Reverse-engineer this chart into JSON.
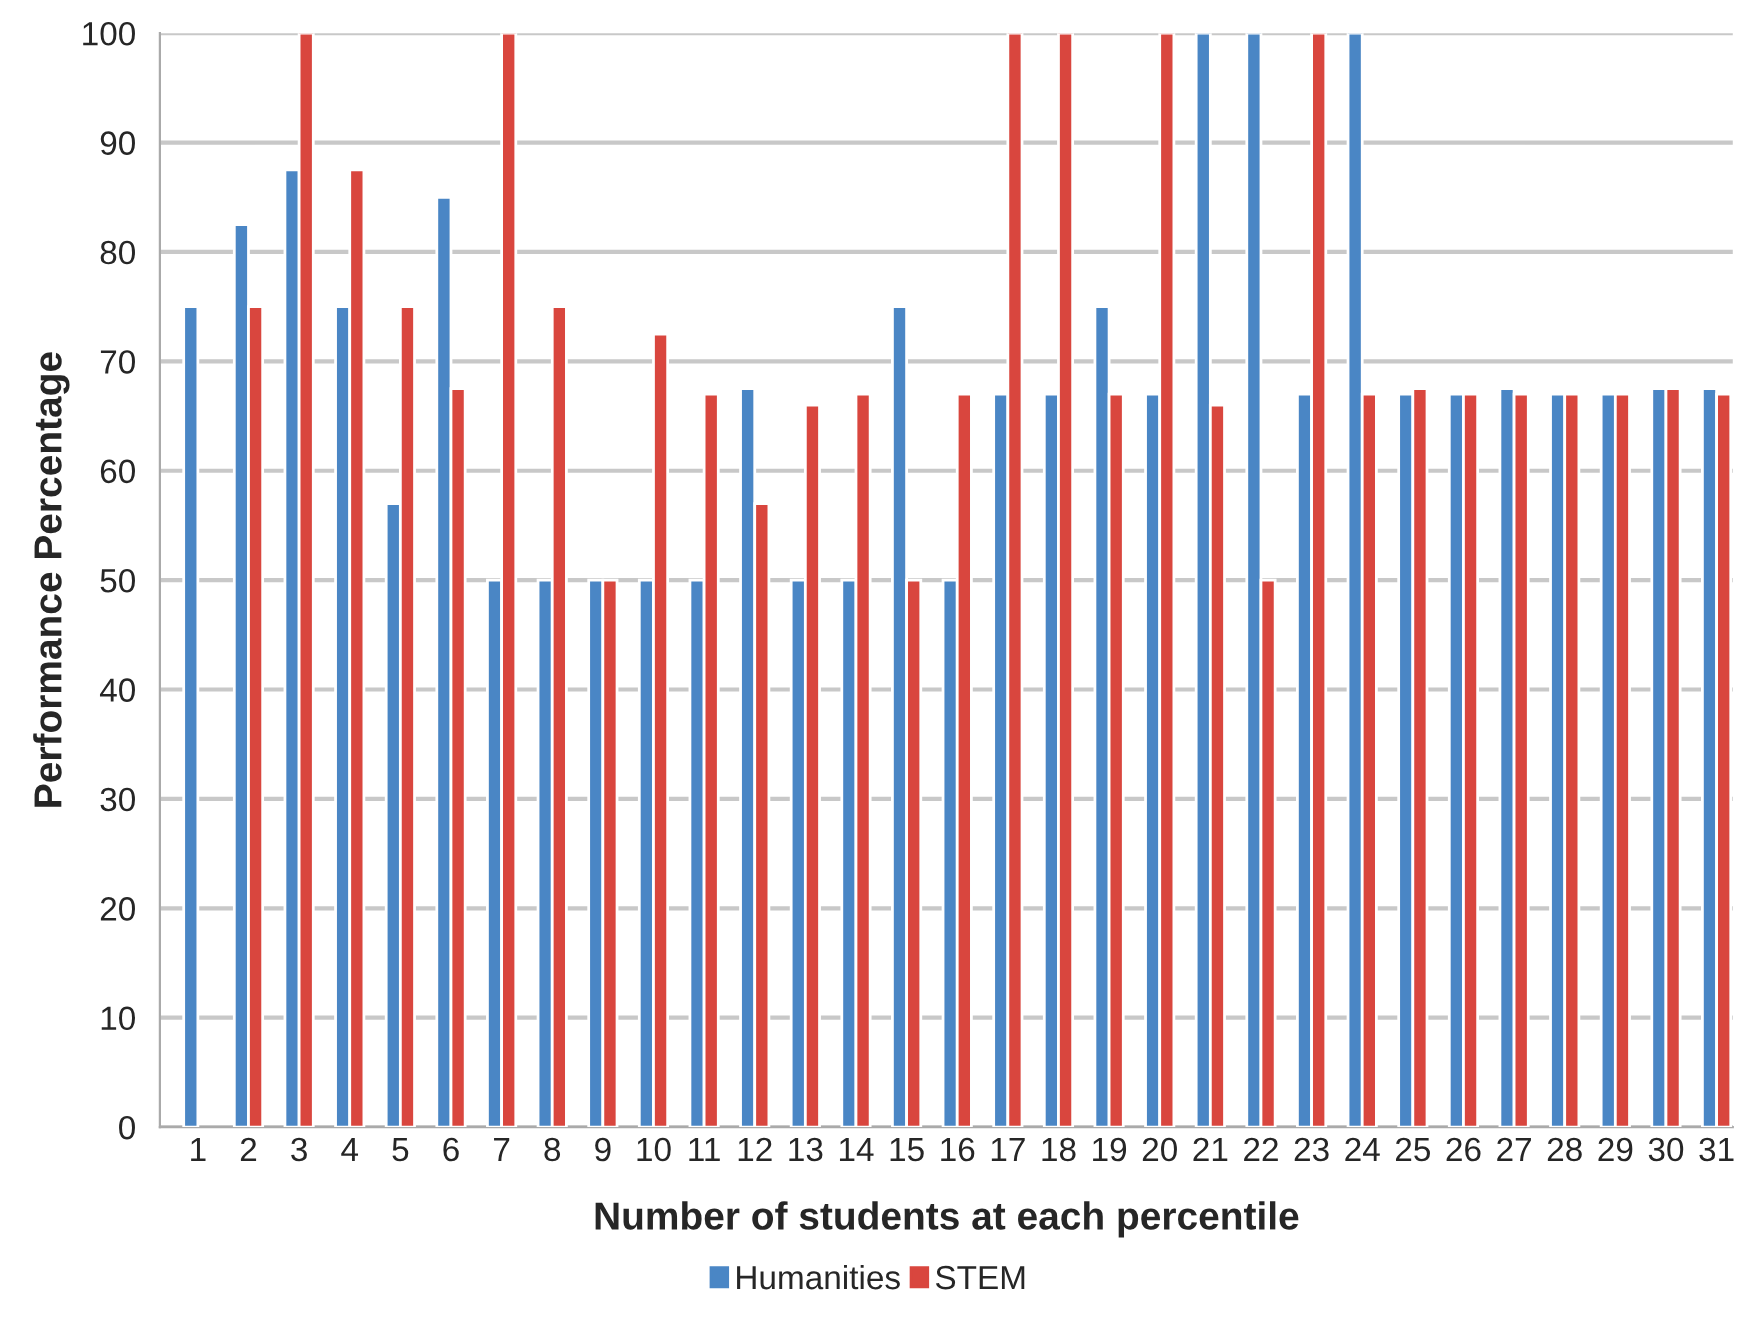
{
  "chart_data": {
    "type": "bar",
    "xlabel": "Number of students at each percentile",
    "ylabel": "Performance Percentage",
    "categories": [
      "1",
      "2",
      "3",
      "4",
      "5",
      "6",
      "7",
      "8",
      "9",
      "10",
      "11",
      "12",
      "13",
      "14",
      "15",
      "16",
      "17",
      "18",
      "19",
      "20",
      "21",
      "22",
      "23",
      "24",
      "25",
      "26",
      "27",
      "28",
      "29",
      "30",
      "31"
    ],
    "series": [
      {
        "name": "Humanities",
        "color": "#4a86c5",
        "values": [
          75,
          82.5,
          87.5,
          75,
          57,
          85,
          50,
          50,
          50,
          50,
          50,
          67.5,
          50,
          50,
          75,
          50,
          67,
          67,
          75,
          67,
          100,
          100,
          67,
          100,
          67,
          67,
          67.5,
          67,
          67,
          67.5,
          67.5
        ]
      },
      {
        "name": "STEM",
        "color": "#d9463e",
        "values": [
          null,
          75,
          100,
          87.5,
          75,
          67.5,
          100,
          75,
          50,
          72.5,
          67,
          57,
          66,
          67,
          50,
          67,
          100,
          100,
          67,
          100,
          66,
          50,
          100,
          67,
          67.5,
          67,
          67,
          67,
          67,
          67.5,
          67
        ]
      }
    ],
    "ylim": [
      0,
      100
    ],
    "yticks": [
      0,
      10,
      20,
      30,
      40,
      50,
      60,
      70,
      80,
      90,
      100
    ],
    "grid": "y",
    "legend": "bottom"
  }
}
